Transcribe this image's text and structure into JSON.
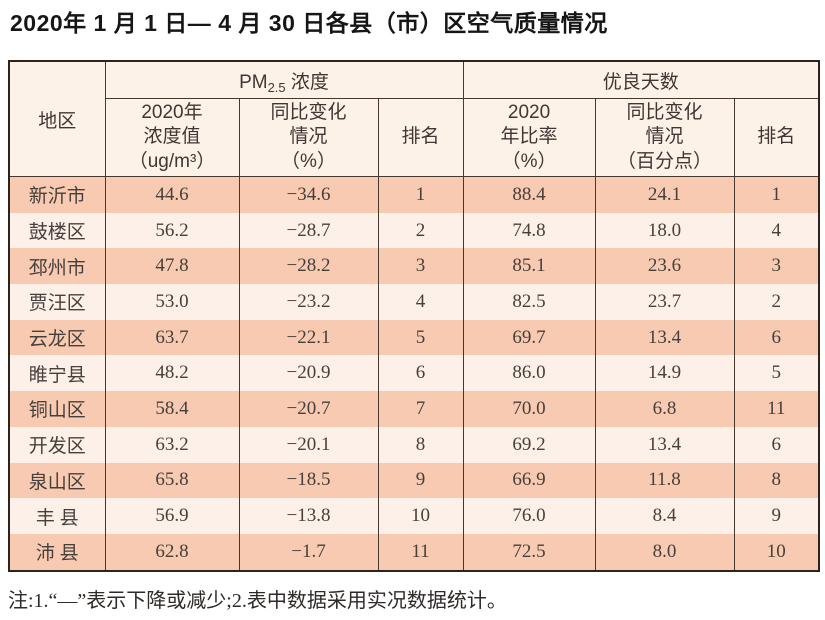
{
  "page": {
    "title": "2020年 1 月 1 日— 4 月 30 日各县（市）区空气质量情况",
    "note": "注:1.“—”表示下降或减少;2.表中数据采用实况数据统计。"
  },
  "colors": {
    "stripe_dark": "#f8cab1",
    "stripe_light": "#fcf0e9",
    "header_bg": "#fdf2e8",
    "border": "#45392f",
    "outer_border": "#2c231d"
  },
  "table": {
    "region_header": "地区",
    "pm_group": {
      "prefix": "PM",
      "sub": "2.5",
      "suffix": " 浓度"
    },
    "good_group": "优良天数",
    "subheaders": [
      "2020年\n浓度值\n（ug/m³）",
      "同比变化\n情况\n（%）",
      "排名",
      "2020\n年比率\n（%）",
      "同比变化\n情况\n（百分点）",
      "排名"
    ],
    "rows": [
      {
        "region": "新沂市",
        "pm_value": "44.6",
        "pm_change": "−34.6",
        "pm_rank": "1",
        "ratio": "88.4",
        "ratio_change": "24.1",
        "ratio_rank": "1"
      },
      {
        "region": "鼓楼区",
        "pm_value": "56.2",
        "pm_change": "−28.7",
        "pm_rank": "2",
        "ratio": "74.8",
        "ratio_change": "18.0",
        "ratio_rank": "4"
      },
      {
        "region": "邳州市",
        "pm_value": "47.8",
        "pm_change": "−28.2",
        "pm_rank": "3",
        "ratio": "85.1",
        "ratio_change": "23.6",
        "ratio_rank": "3"
      },
      {
        "region": "贾汪区",
        "pm_value": "53.0",
        "pm_change": "−23.2",
        "pm_rank": "4",
        "ratio": "82.5",
        "ratio_change": "23.7",
        "ratio_rank": "2"
      },
      {
        "region": "云龙区",
        "pm_value": "63.7",
        "pm_change": "−22.1",
        "pm_rank": "5",
        "ratio": "69.7",
        "ratio_change": "13.4",
        "ratio_rank": "6"
      },
      {
        "region": "睢宁县",
        "pm_value": "48.2",
        "pm_change": "−20.9",
        "pm_rank": "6",
        "ratio": "86.0",
        "ratio_change": "14.9",
        "ratio_rank": "5"
      },
      {
        "region": "铜山区",
        "pm_value": "58.4",
        "pm_change": "−20.7",
        "pm_rank": "7",
        "ratio": "70.0",
        "ratio_change": "6.8",
        "ratio_rank": "11"
      },
      {
        "region": "开发区",
        "pm_value": "63.2",
        "pm_change": "−20.1",
        "pm_rank": "8",
        "ratio": "69.2",
        "ratio_change": "13.4",
        "ratio_rank": "6"
      },
      {
        "region": "泉山区",
        "pm_value": "65.8",
        "pm_change": "−18.5",
        "pm_rank": "9",
        "ratio": "66.9",
        "ratio_change": "11.8",
        "ratio_rank": "8"
      },
      {
        "region": "丰 县",
        "pm_value": "56.9",
        "pm_change": "−13.8",
        "pm_rank": "10",
        "ratio": "76.0",
        "ratio_change": "8.4",
        "ratio_rank": "9"
      },
      {
        "region": "沛 县",
        "pm_value": "62.8",
        "pm_change": "−1.7",
        "pm_rank": "11",
        "ratio": "72.5",
        "ratio_change": "8.0",
        "ratio_rank": "10"
      }
    ]
  }
}
